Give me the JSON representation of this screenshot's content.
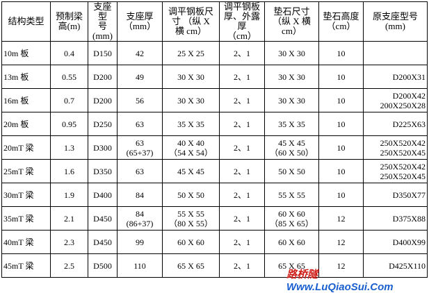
{
  "table": {
    "header": [
      "结构类型",
      "预制梁\n高(m)",
      "支座型\n号(mm)",
      "支座厚\n（mm）",
      "调平钢板尺\n寸 （纵 X\n横 cm）",
      "调平钢板\n厚、外露厚\n（cm）",
      "垫石尺寸\n（纵 X 横 cm）",
      "垫石高度\n（cm）",
      "原支座型号\n(mm)"
    ],
    "rows": [
      [
        "10m 板",
        "0.4",
        "D150",
        "42",
        "25 X 25",
        "2、1",
        "30 X 30",
        "10",
        null
      ],
      [
        "13m 板",
        "0.55",
        "D200",
        "49",
        "30 X 30",
        "2、1",
        "30 X 30",
        "10",
        "D200X31"
      ],
      [
        "16m 板",
        "0.7",
        "D200",
        "56",
        "30 X 30",
        "2、1",
        "30 X 30",
        "10",
        "D200X42\n200X250X28"
      ],
      [
        "20m 板",
        "0.95",
        "D250",
        "63",
        "35 X 35",
        "2、1",
        "35 X 35",
        "10",
        "D225X63"
      ],
      [
        "20mT 梁",
        "1.3",
        "D300",
        "63\n(65+37)",
        "40 X 40\n（54 X 54）",
        "2、1",
        "45 X 45\n（60 X 50）",
        "10",
        "250X520X42\n250X520X45"
      ],
      [
        "25mT 梁",
        "1.6",
        "D350",
        "63",
        "45 X 45",
        "2、1",
        "50 X 50",
        "10",
        "250X520X42\n250X520X45"
      ],
      [
        "30mT 梁",
        "1.9",
        "D400",
        "84",
        "50 X 50",
        "2、1",
        "55 X 55",
        "10",
        "D350X77"
      ],
      [
        "35mT 梁",
        "2.1",
        "D450",
        "84\n(86+37)",
        "55 X 55\n（80 X 55）",
        "2、1",
        "60 X 60\n（85 X 65）",
        "12",
        "D375X88"
      ],
      [
        "40mT 梁",
        "2.3",
        "D450",
        "99",
        "60 X 60",
        "2、1",
        "60 X 60",
        "12",
        "D400X99"
      ],
      [
        "45mT 梁",
        "2.5",
        "D500",
        "110",
        "65 X 65",
        "2、1",
        "65 X 65",
        "12",
        "D425X110"
      ]
    ]
  },
  "watermark": {
    "brand": "路桥隧",
    "url": "Www.LuQiaoSui.Com"
  }
}
